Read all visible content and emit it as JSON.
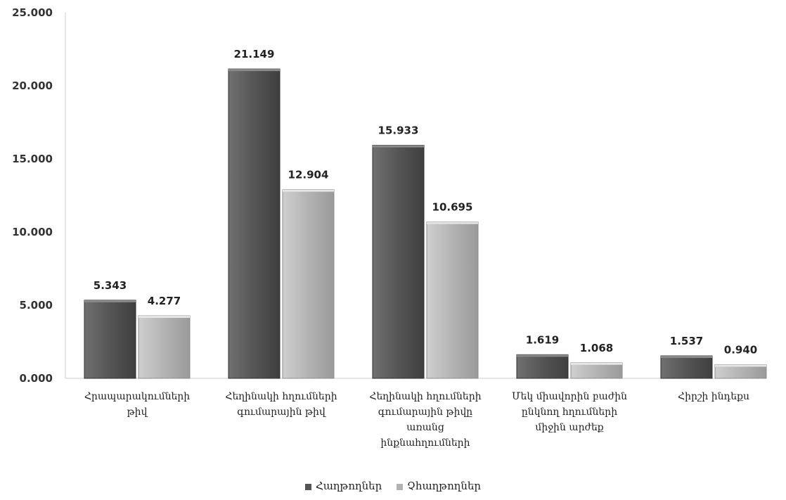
{
  "chart_data": {
    "type": "bar",
    "categories": [
      [
        "Հրապարակումների",
        "թիվ"
      ],
      [
        "Հեղինակի հղումների",
        "գումարային թիվ"
      ],
      [
        "Հեղինակի հղումների",
        "գումարային թիվը",
        "առանց",
        "ինքնահղումների"
      ],
      [
        "Մեկ միավորին բաժին",
        "ընկնող հղումների",
        "միջին արժեք"
      ],
      [
        "Հիրշի ինդեքս"
      ]
    ],
    "series": [
      {
        "name": "Հաղթողներ",
        "values": [
          5.343,
          21.149,
          15.933,
          1.619,
          1.537
        ],
        "labels": [
          "5.343",
          "21.149",
          "15.933",
          "1.619",
          "1.537"
        ],
        "color": "#555555"
      },
      {
        "name": "Չհաղթողներ",
        "values": [
          4.277,
          12.904,
          10.695,
          1.068,
          0.94
        ],
        "labels": [
          "4.277",
          "12.904",
          "10.695",
          "1.068",
          "0.940"
        ],
        "color": "#b3b3b3"
      }
    ],
    "ylim": [
      0,
      25
    ],
    "yticks": [
      "0.000",
      "5.000",
      "10.000",
      "15.000",
      "20.000",
      "25.000"
    ],
    "grid": false,
    "legend": "bottom"
  }
}
